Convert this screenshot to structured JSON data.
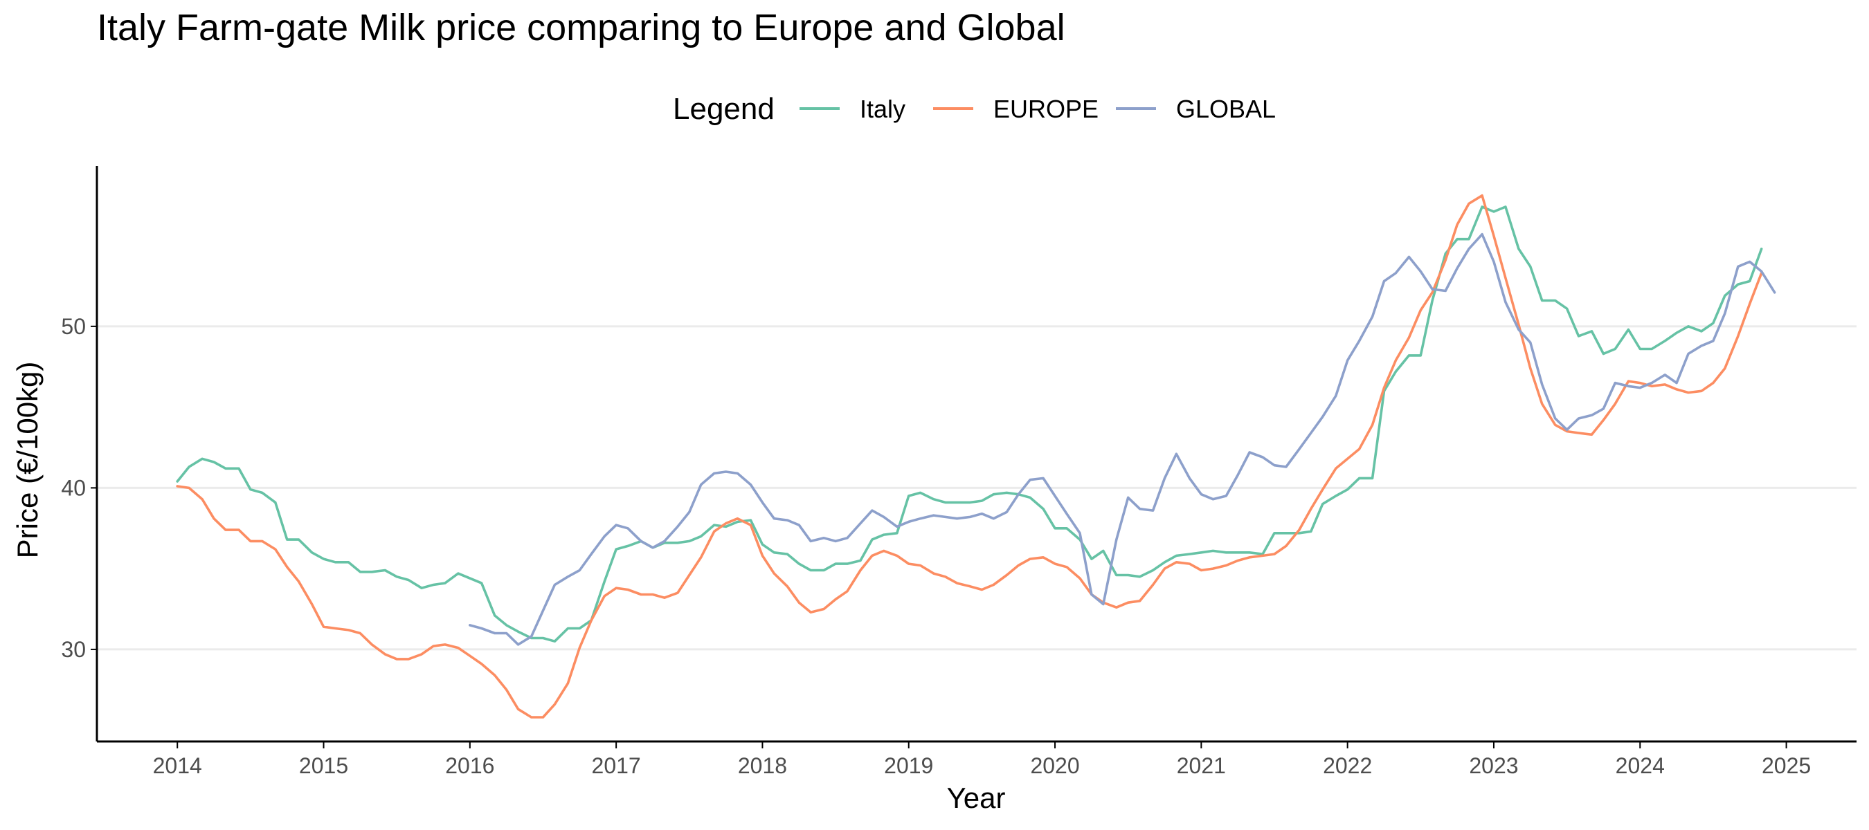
{
  "chart_data": {
    "type": "line",
    "title": "Italy Farm-gate Milk price comparing to Europe and Global",
    "xlabel": "Year",
    "ylabel": "Price (€/100kg)",
    "x_unit": "decimal year",
    "xlim": [
      2013.45,
      2025.48
    ],
    "ylim": [
      24.3,
      59.5
    ],
    "x_ticks": [
      2014,
      2015,
      2016,
      2017,
      2018,
      2019,
      2020,
      2021,
      2022,
      2023,
      2024,
      2025
    ],
    "y_ticks": [
      30,
      40,
      50
    ],
    "grid": "horizontal major",
    "legend": {
      "title": "Legend",
      "placement": "top"
    },
    "series": [
      {
        "name": "Italy",
        "color": "#66C2A5",
        "x": [
          2014.0,
          2014.08,
          2014.17,
          2014.25,
          2014.33,
          2014.42,
          2014.5,
          2014.58,
          2014.67,
          2014.75,
          2014.83,
          2014.92,
          2015.0,
          2015.08,
          2015.17,
          2015.25,
          2015.33,
          2015.42,
          2015.5,
          2015.58,
          2015.67,
          2015.75,
          2015.83,
          2015.92,
          2016.0,
          2016.08,
          2016.17,
          2016.25,
          2016.33,
          2016.42,
          2016.5,
          2016.58,
          2016.67,
          2016.75,
          2016.83,
          2016.92,
          2017.0,
          2017.08,
          2017.17,
          2017.25,
          2017.33,
          2017.42,
          2017.5,
          2017.58,
          2017.67,
          2017.75,
          2017.83,
          2017.92,
          2018.0,
          2018.08,
          2018.17,
          2018.25,
          2018.33,
          2018.42,
          2018.5,
          2018.58,
          2018.67,
          2018.75,
          2018.83,
          2018.92,
          2019.0,
          2019.08,
          2019.17,
          2019.25,
          2019.33,
          2019.42,
          2019.5,
          2019.58,
          2019.67,
          2019.75,
          2019.83,
          2019.92,
          2020.0,
          2020.08,
          2020.17,
          2020.25,
          2020.33,
          2020.42,
          2020.5,
          2020.58,
          2020.67,
          2020.75,
          2020.83,
          2020.92,
          2021.0,
          2021.08,
          2021.17,
          2021.25,
          2021.33,
          2021.42,
          2021.5,
          2021.58,
          2021.67,
          2021.75,
          2021.83,
          2021.92,
          2022.0,
          2022.08,
          2022.17,
          2022.25,
          2022.33,
          2022.42,
          2022.5,
          2022.58,
          2022.67,
          2022.75,
          2022.83,
          2022.92,
          2023.0,
          2023.08,
          2023.17,
          2023.25,
          2023.33,
          2023.42,
          2023.5,
          2023.58,
          2023.67,
          2023.75,
          2023.83,
          2023.92,
          2024.0,
          2024.08,
          2024.17,
          2024.25,
          2024.33,
          2024.42,
          2024.5,
          2024.58,
          2024.67,
          2024.75,
          2024.83
        ],
        "values": [
          40.4,
          41.3,
          41.8,
          41.6,
          41.2,
          41.2,
          39.9,
          39.7,
          39.1,
          36.8,
          36.8,
          36.0,
          35.6,
          35.4,
          35.4,
          34.8,
          34.8,
          34.9,
          34.5,
          34.3,
          33.8,
          34.0,
          34.1,
          34.7,
          34.4,
          34.1,
          32.1,
          31.5,
          31.1,
          30.7,
          30.7,
          30.5,
          31.3,
          31.3,
          31.8,
          34.2,
          36.2,
          36.4,
          36.7,
          36.3,
          36.6,
          36.6,
          36.7,
          37.0,
          37.7,
          37.6,
          37.9,
          38.0,
          36.5,
          36.0,
          35.9,
          35.3,
          34.9,
          34.9,
          35.3,
          35.3,
          35.5,
          36.8,
          37.1,
          37.2,
          39.5,
          39.7,
          39.3,
          39.1,
          39.1,
          39.1,
          39.2,
          39.6,
          39.7,
          39.6,
          39.4,
          38.7,
          37.5,
          37.5,
          36.8,
          35.6,
          36.1,
          34.6,
          34.6,
          34.5,
          34.9,
          35.4,
          35.8,
          35.9,
          36.0,
          36.1,
          36.0,
          36.0,
          36.0,
          35.9,
          37.2,
          37.2,
          37.2,
          37.3,
          39.0,
          39.5,
          39.9,
          40.6,
          40.6,
          46.0,
          47.2,
          48.2,
          48.2,
          51.6,
          54.5,
          55.4,
          55.4,
          57.4,
          57.1,
          57.4,
          54.8,
          53.7,
          51.6,
          51.6,
          51.1,
          49.4,
          49.7,
          48.3,
          48.6,
          49.8,
          48.6,
          48.6,
          49.1,
          49.6,
          50.0,
          49.7,
          50.2,
          51.9,
          52.6,
          52.8,
          54.8
        ]
      },
      {
        "name": "EUROPE",
        "color": "#FC8D62",
        "x": [
          2014.0,
          2014.08,
          2014.17,
          2014.25,
          2014.33,
          2014.42,
          2014.5,
          2014.58,
          2014.67,
          2014.75,
          2014.83,
          2014.92,
          2015.0,
          2015.08,
          2015.17,
          2015.25,
          2015.33,
          2015.42,
          2015.5,
          2015.58,
          2015.67,
          2015.75,
          2015.83,
          2015.92,
          2016.0,
          2016.08,
          2016.17,
          2016.25,
          2016.33,
          2016.42,
          2016.5,
          2016.58,
          2016.67,
          2016.75,
          2016.83,
          2016.92,
          2017.0,
          2017.08,
          2017.17,
          2017.25,
          2017.33,
          2017.42,
          2017.5,
          2017.58,
          2017.67,
          2017.75,
          2017.83,
          2017.92,
          2018.0,
          2018.08,
          2018.17,
          2018.25,
          2018.33,
          2018.42,
          2018.5,
          2018.58,
          2018.67,
          2018.75,
          2018.83,
          2018.92,
          2019.0,
          2019.08,
          2019.17,
          2019.25,
          2019.33,
          2019.42,
          2019.5,
          2019.58,
          2019.67,
          2019.75,
          2019.83,
          2019.92,
          2020.0,
          2020.08,
          2020.17,
          2020.25,
          2020.33,
          2020.42,
          2020.5,
          2020.58,
          2020.67,
          2020.75,
          2020.83,
          2020.92,
          2021.0,
          2021.08,
          2021.17,
          2021.25,
          2021.33,
          2021.42,
          2021.5,
          2021.58,
          2021.67,
          2021.75,
          2021.83,
          2021.92,
          2022.0,
          2022.08,
          2022.17,
          2022.25,
          2022.33,
          2022.42,
          2022.5,
          2022.58,
          2022.67,
          2022.75,
          2022.83,
          2022.92,
          2023.0,
          2023.08,
          2023.17,
          2023.25,
          2023.33,
          2023.42,
          2023.5,
          2023.58,
          2023.67,
          2023.75,
          2023.83,
          2023.92,
          2024.0,
          2024.08,
          2024.17,
          2024.25,
          2024.33,
          2024.42,
          2024.5,
          2024.58,
          2024.67,
          2024.75,
          2024.83
        ],
        "values": [
          40.1,
          40.0,
          39.3,
          38.1,
          37.4,
          37.4,
          36.7,
          36.7,
          36.2,
          35.1,
          34.2,
          32.8,
          31.4,
          31.3,
          31.2,
          31.0,
          30.3,
          29.7,
          29.4,
          29.4,
          29.7,
          30.2,
          30.3,
          30.1,
          29.6,
          29.1,
          28.4,
          27.5,
          26.3,
          25.8,
          25.8,
          26.6,
          27.9,
          30.1,
          31.8,
          33.3,
          33.8,
          33.7,
          33.4,
          33.4,
          33.2,
          33.5,
          34.6,
          35.7,
          37.3,
          37.8,
          38.1,
          37.7,
          35.8,
          34.7,
          33.9,
          32.9,
          32.3,
          32.5,
          33.1,
          33.6,
          34.9,
          35.8,
          36.1,
          35.8,
          35.3,
          35.2,
          34.7,
          34.5,
          34.1,
          33.9,
          33.7,
          34.0,
          34.6,
          35.2,
          35.6,
          35.7,
          35.3,
          35.1,
          34.4,
          33.4,
          32.9,
          32.6,
          32.9,
          33.0,
          34.0,
          35.0,
          35.4,
          35.3,
          34.9,
          35.0,
          35.2,
          35.5,
          35.7,
          35.8,
          35.9,
          36.4,
          37.4,
          38.7,
          39.9,
          41.2,
          41.8,
          42.4,
          43.9,
          46.2,
          47.9,
          49.3,
          51.0,
          52.1,
          54.1,
          56.3,
          57.6,
          58.1,
          55.6,
          53.0,
          50.1,
          47.4,
          45.2,
          43.9,
          43.5,
          43.4,
          43.3,
          44.2,
          45.2,
          46.6,
          46.5,
          46.3,
          46.4,
          46.1,
          45.9,
          46.0,
          46.5,
          47.4,
          49.4,
          51.4,
          53.3
        ]
      },
      {
        "name": "GLOBAL",
        "color": "#8DA0CB",
        "x": [
          2016.0,
          2016.08,
          2016.17,
          2016.25,
          2016.33,
          2016.42,
          2016.5,
          2016.58,
          2016.67,
          2016.75,
          2016.83,
          2016.92,
          2017.0,
          2017.08,
          2017.17,
          2017.25,
          2017.33,
          2017.42,
          2017.5,
          2017.58,
          2017.67,
          2017.75,
          2017.83,
          2017.92,
          2018.0,
          2018.08,
          2018.17,
          2018.25,
          2018.33,
          2018.42,
          2018.5,
          2018.58,
          2018.67,
          2018.75,
          2018.83,
          2018.92,
          2019.0,
          2019.08,
          2019.17,
          2019.25,
          2019.33,
          2019.42,
          2019.5,
          2019.58,
          2019.67,
          2019.75,
          2019.83,
          2019.92,
          2020.0,
          2020.08,
          2020.17,
          2020.25,
          2020.33,
          2020.42,
          2020.5,
          2020.58,
          2020.67,
          2020.75,
          2020.83,
          2020.92,
          2021.0,
          2021.08,
          2021.17,
          2021.25,
          2021.33,
          2021.42,
          2021.5,
          2021.58,
          2021.67,
          2021.75,
          2021.83,
          2021.92,
          2022.0,
          2022.08,
          2022.17,
          2022.25,
          2022.33,
          2022.42,
          2022.5,
          2022.58,
          2022.67,
          2022.75,
          2022.83,
          2022.92,
          2023.0,
          2023.08,
          2023.17,
          2023.25,
          2023.33,
          2023.42,
          2023.5,
          2023.58,
          2023.67,
          2023.75,
          2023.83,
          2023.92,
          2024.0,
          2024.08,
          2024.17,
          2024.25,
          2024.33,
          2024.42,
          2024.5,
          2024.58,
          2024.67,
          2024.75,
          2024.83,
          2024.92
        ],
        "values": [
          31.5,
          31.3,
          31.0,
          31.0,
          30.3,
          30.8,
          32.4,
          34.0,
          34.5,
          34.9,
          35.9,
          37.0,
          37.7,
          37.5,
          36.7,
          36.3,
          36.7,
          37.6,
          38.5,
          40.2,
          40.9,
          41.0,
          40.9,
          40.2,
          39.1,
          38.1,
          38.0,
          37.7,
          36.7,
          36.9,
          36.7,
          36.9,
          37.8,
          38.6,
          38.2,
          37.6,
          37.9,
          38.1,
          38.3,
          38.2,
          38.1,
          38.2,
          38.4,
          38.1,
          38.5,
          39.6,
          40.5,
          40.6,
          39.5,
          38.4,
          37.2,
          33.4,
          32.8,
          36.8,
          39.4,
          38.7,
          38.6,
          40.6,
          42.1,
          40.6,
          39.6,
          39.3,
          39.5,
          40.8,
          42.2,
          41.9,
          41.4,
          41.3,
          42.4,
          43.4,
          44.4,
          45.7,
          47.9,
          49.1,
          50.6,
          52.8,
          53.3,
          54.3,
          53.4,
          52.3,
          52.2,
          53.6,
          54.8,
          55.7,
          54.0,
          51.5,
          49.8,
          49.0,
          46.4,
          44.3,
          43.6,
          44.3,
          44.5,
          44.9,
          46.5,
          46.3,
          46.2,
          46.5,
          47.0,
          46.5,
          48.3,
          48.8,
          49.1,
          50.8,
          53.7,
          54.0,
          53.4,
          52.1
        ]
      }
    ]
  }
}
